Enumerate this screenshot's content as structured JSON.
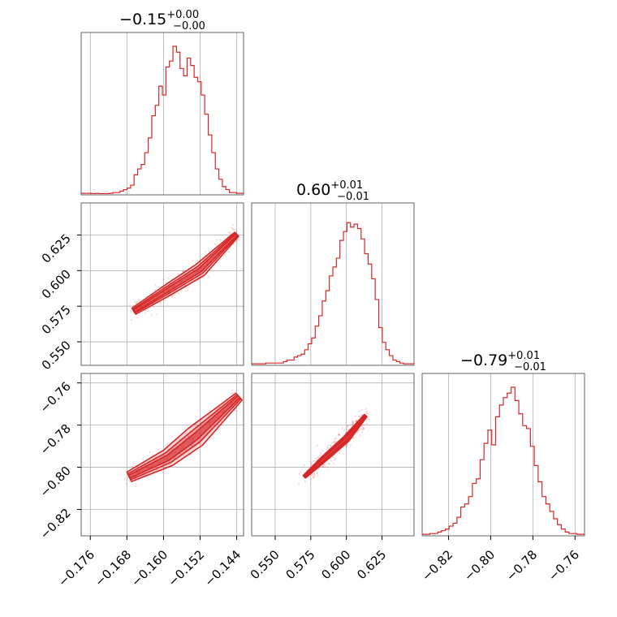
{
  "chart_data": {
    "type": "corner",
    "color": "#d62728",
    "grid": true,
    "parameters": [
      {
        "title": "−0.15",
        "sup": "+0.00",
        "sub": "−0.00",
        "median": -0.1535,
        "range": [
          -0.178,
          -0.1425
        ],
        "ticks": [
          -0.176,
          -0.168,
          -0.16,
          -0.152,
          -0.144
        ],
        "tick_labels": [
          "−0.176",
          "−0.168",
          "−0.160",
          "−0.152",
          "−0.144"
        ]
      },
      {
        "title": "0.60",
        "sup": "+0.01",
        "sub": "−0.01",
        "median": 0.5995,
        "range": [
          0.5335,
          0.6475
        ],
        "ticks": [
          0.55,
          0.575,
          0.6,
          0.625
        ],
        "tick_labels": [
          "0.550",
          "0.575",
          "0.600",
          "0.625"
        ]
      },
      {
        "title": "−0.79",
        "sup": "+0.01",
        "sub": "−0.01",
        "median": -0.788,
        "range": [
          -0.8325,
          -0.7555
        ],
        "ticks": [
          -0.82,
          -0.8,
          -0.78,
          -0.76
        ],
        "tick_labels": [
          "−0.82",
          "−0.80",
          "−0.78",
          "−0.76"
        ]
      }
    ],
    "histograms": [
      {
        "param": 0,
        "start": -0.178,
        "end": -0.1425,
        "counts": [
          0.5,
          0.5,
          0.5,
          0.3,
          0.5,
          0.3,
          0.3,
          0.3,
          0.5,
          1,
          1,
          2,
          3,
          4,
          6,
          13,
          17,
          20,
          28,
          38,
          53,
          60,
          73,
          67,
          86,
          90,
          100,
          96,
          85,
          80,
          92,
          87,
          79,
          76,
          67,
          54,
          40,
          28,
          17,
          10,
          5,
          3,
          1,
          1,
          0.5,
          0.5
        ]
      },
      {
        "param": 1,
        "start": 0.5335,
        "end": 0.6475,
        "counts": [
          0.5,
          0.5,
          0.5,
          0.5,
          1,
          1,
          1,
          1,
          1,
          2,
          3,
          3,
          5,
          6,
          7,
          10,
          14,
          18,
          26,
          33,
          43,
          50,
          60,
          66,
          72,
          84,
          90,
          96,
          93,
          95,
          92,
          85,
          75,
          68,
          58,
          44,
          25,
          15,
          10,
          6,
          3,
          2,
          1,
          0.5,
          0.5,
          0.5
        ]
      },
      {
        "param": 2,
        "start": -0.8325,
        "end": -0.7555,
        "counts": [
          0.5,
          0.5,
          1,
          1,
          2,
          3,
          4,
          6,
          8,
          12,
          19,
          21,
          26,
          35,
          38,
          51,
          62,
          71,
          61,
          80,
          88,
          93,
          96,
          100,
          91,
          82,
          74,
          72,
          60,
          47,
          36,
          26,
          21,
          16,
          11,
          7,
          4,
          2,
          1,
          1,
          0.5,
          0.5
        ]
      }
    ],
    "panels_2d": [
      {
        "x_param": 0,
        "y_param": 1,
        "ridge": [
          [
            -0.1665,
            0.5715
          ],
          [
            -0.159,
            0.5865
          ],
          [
            -0.152,
            0.6005
          ],
          [
            -0.144,
            0.6255
          ]
        ],
        "widths": [
          0.0025,
          0.004,
          0.0048,
          0.002
        ],
        "scatter_count": 300
      },
      {
        "x_param": 0,
        "y_param": 2,
        "ridge": [
          [
            -0.1675,
            -0.8045
          ],
          [
            -0.159,
            -0.7955
          ],
          [
            -0.153,
            -0.7855
          ],
          [
            -0.1435,
            -0.7665
          ]
        ],
        "widths": [
          0.0025,
          0.0042,
          0.0052,
          0.0022
        ],
        "scatter_count": 300
      },
      {
        "x_param": 1,
        "y_param": 2,
        "ridge": [
          [
            0.5705,
            -0.8045
          ],
          [
            0.585,
            -0.7955
          ],
          [
            0.6,
            -0.7865
          ],
          [
            0.6135,
            -0.7755
          ]
        ],
        "widths": [
          0.0008,
          0.0014,
          0.0016,
          0.0008
        ],
        "scatter_count": 300
      }
    ]
  }
}
